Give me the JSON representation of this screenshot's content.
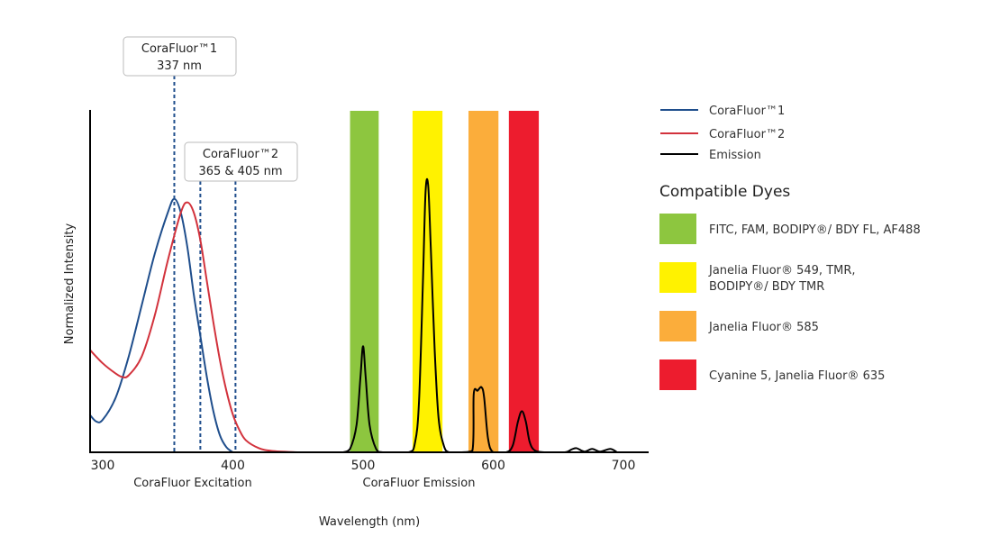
{
  "chart_data": {
    "type": "line",
    "ylabel": "Normalized Intensity",
    "xlabel": "Wavelength (nm)",
    "sublabels": [
      "CoraFluor Excitation",
      "CoraFluor Emission"
    ],
    "xlim": [
      290,
      720
    ],
    "ylim": [
      0,
      1
    ],
    "x_ticks": [
      300,
      400,
      500,
      600,
      700
    ],
    "grid": false,
    "legend_placement": "right",
    "series": [
      {
        "name": "CoraFluor™1",
        "color": "#1f4e8c",
        "points": [
          [
            290,
            0.11
          ],
          [
            295,
            0.09
          ],
          [
            300,
            0.095
          ],
          [
            310,
            0.16
          ],
          [
            320,
            0.28
          ],
          [
            330,
            0.43
          ],
          [
            340,
            0.58
          ],
          [
            350,
            0.7
          ],
          [
            355,
            0.74
          ],
          [
            360,
            0.7
          ],
          [
            365,
            0.6
          ],
          [
            370,
            0.46
          ],
          [
            375,
            0.34
          ],
          [
            380,
            0.22
          ],
          [
            385,
            0.12
          ],
          [
            390,
            0.05
          ],
          [
            395,
            0.015
          ],
          [
            400,
            0
          ]
        ]
      },
      {
        "name": "CoraFluor™2",
        "color": "#d2323c",
        "points": [
          [
            290,
            0.3
          ],
          [
            300,
            0.26
          ],
          [
            310,
            0.23
          ],
          [
            315,
            0.22
          ],
          [
            320,
            0.225
          ],
          [
            330,
            0.28
          ],
          [
            340,
            0.4
          ],
          [
            350,
            0.56
          ],
          [
            360,
            0.7
          ],
          [
            365,
            0.73
          ],
          [
            370,
            0.7
          ],
          [
            375,
            0.62
          ],
          [
            380,
            0.5
          ],
          [
            385,
            0.38
          ],
          [
            390,
            0.27
          ],
          [
            395,
            0.18
          ],
          [
            400,
            0.11
          ],
          [
            405,
            0.065
          ],
          [
            410,
            0.035
          ],
          [
            420,
            0.012
          ],
          [
            430,
            0.004
          ],
          [
            450,
            0
          ]
        ]
      },
      {
        "name": "Emission",
        "color": "#000000",
        "points": [
          [
            485,
            0
          ],
          [
            490,
            0.01
          ],
          [
            495,
            0.08
          ],
          [
            498,
            0.22
          ],
          [
            500,
            0.31
          ],
          [
            502,
            0.22
          ],
          [
            505,
            0.08
          ],
          [
            510,
            0.01
          ],
          [
            515,
            0
          ],
          [
            535,
            0
          ],
          [
            540,
            0.03
          ],
          [
            543,
            0.15
          ],
          [
            546,
            0.5
          ],
          [
            548,
            0.76
          ],
          [
            550,
            0.78
          ],
          [
            552,
            0.6
          ],
          [
            555,
            0.3
          ],
          [
            558,
            0.1
          ],
          [
            562,
            0.02
          ],
          [
            566,
            0
          ],
          [
            575,
            0
          ],
          [
            584,
            0.005
          ],
          [
            585,
            0.17
          ],
          [
            588,
            0.18
          ],
          [
            591,
            0.19
          ],
          [
            593,
            0.16
          ],
          [
            596,
            0.04
          ],
          [
            600,
            0
          ],
          [
            610,
            0
          ],
          [
            615,
            0.02
          ],
          [
            619,
            0.09
          ],
          [
            622,
            0.12
          ],
          [
            625,
            0.09
          ],
          [
            628,
            0.03
          ],
          [
            632,
            0.005
          ],
          [
            640,
            0
          ],
          [
            655,
            0
          ],
          [
            660,
            0.008
          ],
          [
            664,
            0.012
          ],
          [
            670,
            0.002
          ],
          [
            676,
            0.01
          ],
          [
            682,
            0.002
          ],
          [
            690,
            0.01
          ],
          [
            695,
            0
          ]
        ]
      }
    ],
    "annotations": [
      {
        "lines": [
          "CoraFluor™1",
          "337 nm"
        ],
        "markers_nm": [
          355
        ]
      },
      {
        "lines": [
          "CoraFluor™2",
          "365 & 405 nm"
        ],
        "markers_nm": [
          375,
          402
        ]
      }
    ],
    "dye_bands": [
      {
        "range": [
          490,
          512
        ],
        "color": "#8dc63f",
        "lines": [
          "FITC, FAM, BODIPY®/ BDY FL, AF488"
        ]
      },
      {
        "range": [
          538,
          561
        ],
        "color": "#fff200",
        "lines": [
          "Janelia Fluor® 549, TMR,",
          "BODIPY®/ BDY TMR"
        ]
      },
      {
        "range": [
          581,
          604
        ],
        "color": "#fbad3b",
        "lines": [
          "Janelia Fluor® 585"
        ]
      },
      {
        "range": [
          612,
          635
        ],
        "color": "#ed1c2e",
        "lines": [
          "Cyanine 5, Janelia Fluor® 635"
        ]
      }
    ],
    "legend_title": "Compatible Dyes"
  }
}
